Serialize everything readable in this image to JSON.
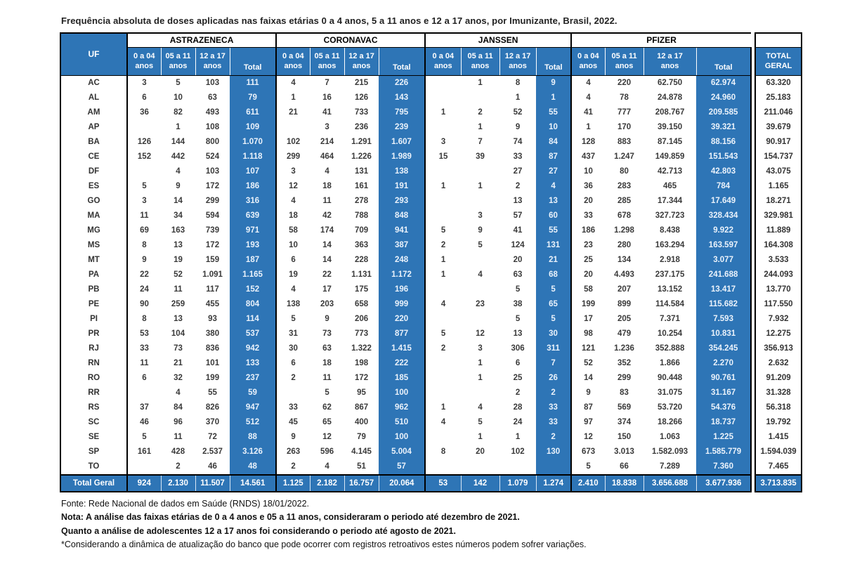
{
  "title": "Frequência absoluta de doses aplicadas nas faixas etárias 0 a 4 anos, 5 a 11 anos e 12 a 17 anos, por Imunizante, Brasil, 2022.",
  "colors": {
    "accent_blue": "#2E75B6",
    "border_black": "#000000",
    "total_text": "#EAF2FB"
  },
  "table": {
    "uf_header": "UF",
    "groups": [
      {
        "name": "ASTRAZENECA"
      },
      {
        "name": "CORONAVAC"
      },
      {
        "name": "JANSSEN"
      },
      {
        "name": "PFIZER"
      }
    ],
    "age_headers": [
      "0 a 04\nanos",
      "05 a 11\nanos",
      "12 a 17\nanos",
      "Total"
    ],
    "total_geral_header": "TOTAL\nGERAL",
    "rows": [
      {
        "uf": "AC",
        "az": [
          "3",
          "5",
          "103",
          "111"
        ],
        "cv": [
          "4",
          "7",
          "215",
          "226"
        ],
        "ja": [
          "",
          "1",
          "8",
          "9"
        ],
        "pf": [
          "4",
          "220",
          "62.750",
          "62.974"
        ],
        "tg": "63.320"
      },
      {
        "uf": "AL",
        "az": [
          "6",
          "10",
          "63",
          "79"
        ],
        "cv": [
          "1",
          "16",
          "126",
          "143"
        ],
        "ja": [
          "",
          "",
          "1",
          "1"
        ],
        "pf": [
          "4",
          "78",
          "24.878",
          "24.960"
        ],
        "tg": "25.183"
      },
      {
        "uf": "AM",
        "az": [
          "36",
          "82",
          "493",
          "611"
        ],
        "cv": [
          "21",
          "41",
          "733",
          "795"
        ],
        "ja": [
          "1",
          "2",
          "52",
          "55"
        ],
        "pf": [
          "41",
          "777",
          "208.767",
          "209.585"
        ],
        "tg": "211.046"
      },
      {
        "uf": "AP",
        "az": [
          "",
          "1",
          "108",
          "109"
        ],
        "cv": [
          "",
          "3",
          "236",
          "239"
        ],
        "ja": [
          "",
          "1",
          "9",
          "10"
        ],
        "pf": [
          "1",
          "170",
          "39.150",
          "39.321"
        ],
        "tg": "39.679"
      },
      {
        "uf": "BA",
        "az": [
          "126",
          "144",
          "800",
          "1.070"
        ],
        "cv": [
          "102",
          "214",
          "1.291",
          "1.607"
        ],
        "ja": [
          "3",
          "7",
          "74",
          "84"
        ],
        "pf": [
          "128",
          "883",
          "87.145",
          "88.156"
        ],
        "tg": "90.917"
      },
      {
        "uf": "CE",
        "az": [
          "152",
          "442",
          "524",
          "1.118"
        ],
        "cv": [
          "299",
          "464",
          "1.226",
          "1.989"
        ],
        "ja": [
          "15",
          "39",
          "33",
          "87"
        ],
        "pf": [
          "437",
          "1.247",
          "149.859",
          "151.543"
        ],
        "tg": "154.737"
      },
      {
        "uf": "DF",
        "az": [
          "",
          "4",
          "103",
          "107"
        ],
        "cv": [
          "3",
          "4",
          "131",
          "138"
        ],
        "ja": [
          "",
          "",
          "27",
          "27"
        ],
        "pf": [
          "10",
          "80",
          "42.713",
          "42.803"
        ],
        "tg": "43.075"
      },
      {
        "uf": "ES",
        "az": [
          "5",
          "9",
          "172",
          "186"
        ],
        "cv": [
          "12",
          "18",
          "161",
          "191"
        ],
        "ja": [
          "1",
          "1",
          "2",
          "4"
        ],
        "pf": [
          "36",
          "283",
          "465",
          "784"
        ],
        "tg": "1.165"
      },
      {
        "uf": "GO",
        "az": [
          "3",
          "14",
          "299",
          "316"
        ],
        "cv": [
          "4",
          "11",
          "278",
          "293"
        ],
        "ja": [
          "",
          "",
          "13",
          "13"
        ],
        "pf": [
          "20",
          "285",
          "17.344",
          "17.649"
        ],
        "tg": "18.271"
      },
      {
        "uf": "MA",
        "az": [
          "11",
          "34",
          "594",
          "639"
        ],
        "cv": [
          "18",
          "42",
          "788",
          "848"
        ],
        "ja": [
          "",
          "3",
          "57",
          "60"
        ],
        "pf": [
          "33",
          "678",
          "327.723",
          "328.434"
        ],
        "tg": "329.981"
      },
      {
        "uf": "MG",
        "az": [
          "69",
          "163",
          "739",
          "971"
        ],
        "cv": [
          "58",
          "174",
          "709",
          "941"
        ],
        "ja": [
          "5",
          "9",
          "41",
          "55"
        ],
        "pf": [
          "186",
          "1.298",
          "8.438",
          "9.922"
        ],
        "tg": "11.889"
      },
      {
        "uf": "MS",
        "az": [
          "8",
          "13",
          "172",
          "193"
        ],
        "cv": [
          "10",
          "14",
          "363",
          "387"
        ],
        "ja": [
          "2",
          "5",
          "124",
          "131"
        ],
        "pf": [
          "23",
          "280",
          "163.294",
          "163.597"
        ],
        "tg": "164.308"
      },
      {
        "uf": "MT",
        "az": [
          "9",
          "19",
          "159",
          "187"
        ],
        "cv": [
          "6",
          "14",
          "228",
          "248"
        ],
        "ja": [
          "1",
          "",
          "20",
          "21"
        ],
        "pf": [
          "25",
          "134",
          "2.918",
          "3.077"
        ],
        "tg": "3.533"
      },
      {
        "uf": "PA",
        "az": [
          "22",
          "52",
          "1.091",
          "1.165"
        ],
        "cv": [
          "19",
          "22",
          "1.131",
          "1.172"
        ],
        "ja": [
          "1",
          "4",
          "63",
          "68"
        ],
        "pf": [
          "20",
          "4.493",
          "237.175",
          "241.688"
        ],
        "tg": "244.093"
      },
      {
        "uf": "PB",
        "az": [
          "24",
          "11",
          "117",
          "152"
        ],
        "cv": [
          "4",
          "17",
          "175",
          "196"
        ],
        "ja": [
          "",
          "",
          "5",
          "5"
        ],
        "pf": [
          "58",
          "207",
          "13.152",
          "13.417"
        ],
        "tg": "13.770"
      },
      {
        "uf": "PE",
        "az": [
          "90",
          "259",
          "455",
          "804"
        ],
        "cv": [
          "138",
          "203",
          "658",
          "999"
        ],
        "ja": [
          "4",
          "23",
          "38",
          "65"
        ],
        "pf": [
          "199",
          "899",
          "114.584",
          "115.682"
        ],
        "tg": "117.550"
      },
      {
        "uf": "PI",
        "az": [
          "8",
          "13",
          "93",
          "114"
        ],
        "cv": [
          "5",
          "9",
          "206",
          "220"
        ],
        "ja": [
          "",
          "",
          "5",
          "5"
        ],
        "pf": [
          "17",
          "205",
          "7.371",
          "7.593"
        ],
        "tg": "7.932"
      },
      {
        "uf": "PR",
        "az": [
          "53",
          "104",
          "380",
          "537"
        ],
        "cv": [
          "31",
          "73",
          "773",
          "877"
        ],
        "ja": [
          "5",
          "12",
          "13",
          "30"
        ],
        "pf": [
          "98",
          "479",
          "10.254",
          "10.831"
        ],
        "tg": "12.275"
      },
      {
        "uf": "RJ",
        "az": [
          "33",
          "73",
          "836",
          "942"
        ],
        "cv": [
          "30",
          "63",
          "1.322",
          "1.415"
        ],
        "ja": [
          "2",
          "3",
          "306",
          "311"
        ],
        "pf": [
          "121",
          "1.236",
          "352.888",
          "354.245"
        ],
        "tg": "356.913"
      },
      {
        "uf": "RN",
        "az": [
          "11",
          "21",
          "101",
          "133"
        ],
        "cv": [
          "6",
          "18",
          "198",
          "222"
        ],
        "ja": [
          "",
          "1",
          "6",
          "7"
        ],
        "pf": [
          "52",
          "352",
          "1.866",
          "2.270"
        ],
        "tg": "2.632"
      },
      {
        "uf": "RO",
        "az": [
          "6",
          "32",
          "199",
          "237"
        ],
        "cv": [
          "2",
          "11",
          "172",
          "185"
        ],
        "ja": [
          "",
          "1",
          "25",
          "26"
        ],
        "pf": [
          "14",
          "299",
          "90.448",
          "90.761"
        ],
        "tg": "91.209"
      },
      {
        "uf": "RR",
        "az": [
          "",
          "4",
          "55",
          "59"
        ],
        "cv": [
          "",
          "5",
          "95",
          "100"
        ],
        "ja": [
          "",
          "",
          "2",
          "2"
        ],
        "pf": [
          "9",
          "83",
          "31.075",
          "31.167"
        ],
        "tg": "31.328"
      },
      {
        "uf": "RS",
        "az": [
          "37",
          "84",
          "826",
          "947"
        ],
        "cv": [
          "33",
          "62",
          "867",
          "962"
        ],
        "ja": [
          "1",
          "4",
          "28",
          "33"
        ],
        "pf": [
          "87",
          "569",
          "53.720",
          "54.376"
        ],
        "tg": "56.318"
      },
      {
        "uf": "SC",
        "az": [
          "46",
          "96",
          "370",
          "512"
        ],
        "cv": [
          "45",
          "65",
          "400",
          "510"
        ],
        "ja": [
          "4",
          "5",
          "24",
          "33"
        ],
        "pf": [
          "97",
          "374",
          "18.266",
          "18.737"
        ],
        "tg": "19.792"
      },
      {
        "uf": "SE",
        "az": [
          "5",
          "11",
          "72",
          "88"
        ],
        "cv": [
          "9",
          "12",
          "79",
          "100"
        ],
        "ja": [
          "",
          "1",
          "1",
          "2"
        ],
        "pf": [
          "12",
          "150",
          "1.063",
          "1.225"
        ],
        "tg": "1.415"
      },
      {
        "uf": "SP",
        "az": [
          "161",
          "428",
          "2.537",
          "3.126"
        ],
        "cv": [
          "263",
          "596",
          "4.145",
          "5.004"
        ],
        "ja": [
          "8",
          "20",
          "102",
          "130"
        ],
        "pf": [
          "673",
          "3.013",
          "1.582.093",
          "1.585.779"
        ],
        "tg": "1.594.039"
      },
      {
        "uf": "TO",
        "az": [
          "",
          "2",
          "46",
          "48"
        ],
        "cv": [
          "2",
          "4",
          "51",
          "57"
        ],
        "ja": [
          "",
          "",
          "",
          ""
        ],
        "pf": [
          "5",
          "66",
          "7.289",
          "7.360"
        ],
        "tg": "7.465"
      }
    ],
    "totals": {
      "label": "Total Geral",
      "az": [
        "924",
        "2.130",
        "11.507",
        "14.561"
      ],
      "cv": [
        "1.125",
        "2.182",
        "16.757",
        "20.064"
      ],
      "ja": [
        "53",
        "142",
        "1.079",
        "1.274"
      ],
      "pf": [
        "2.410",
        "18.838",
        "3.656.688",
        "3.677.936"
      ],
      "tg": "3.713.835"
    }
  },
  "footer": {
    "lines": [
      "Fonte: Rede Nacional de dados em Saúde (RNDS) 18/01/2022.",
      "Nota: A análise das faixas etárias de 0 a 4 anos e 05 a 11 anos, consideraram o periodo até dezembro de 2021.",
      "Quanto a análise de adolescentes 12 a 17 anos foi considerando o periodo até agosto de 2021.",
      "*Considerando a dinâmica de atualização do banco que pode ocorrer com registros retroativos estes números podem sofrer variações."
    ]
  }
}
